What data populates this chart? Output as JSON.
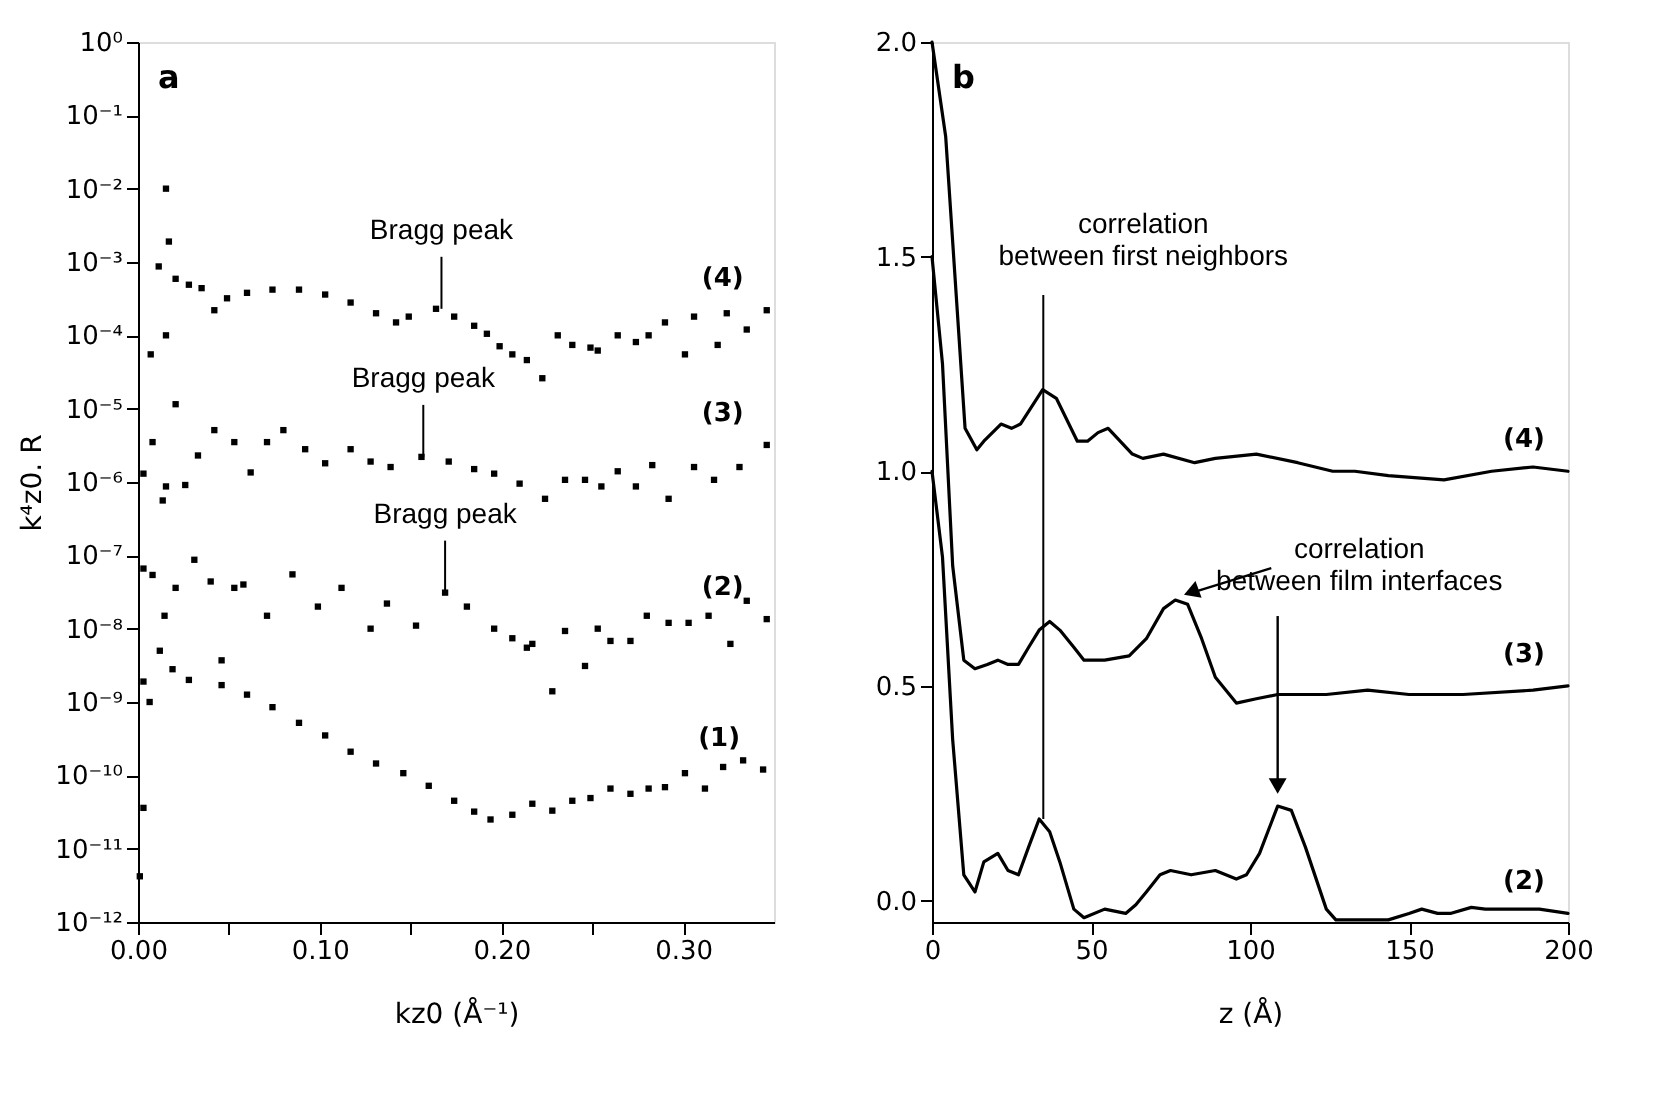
{
  "chart_data": [
    {
      "type": "scatter",
      "marker": "square",
      "log": "y",
      "grid": false,
      "xlabel": "kz0 (Å⁻¹)",
      "ylabel": "k⁴z0. R",
      "xlim": [
        0,
        0.35
      ],
      "xticks": [
        {
          "value": 0,
          "label": "0.00"
        },
        {
          "value": 0.05,
          "label": null
        },
        {
          "value": 0.1,
          "label": "0.10"
        },
        {
          "value": 0.15,
          "label": null
        },
        {
          "value": 0.2,
          "label": "0.20"
        },
        {
          "value": 0.25,
          "label": null
        },
        {
          "value": 0.3,
          "label": "0.30"
        }
      ],
      "ylim": [
        1e-12,
        1
      ],
      "yticks": [
        {
          "value": 1,
          "label": "10⁰"
        },
        {
          "value": 0.1,
          "label": "10⁻¹"
        },
        {
          "value": 0.01,
          "label": "10⁻²"
        },
        {
          "value": 0.001,
          "label": "10⁻³"
        },
        {
          "value": 0.0001,
          "label": "10⁻⁴"
        },
        {
          "value": 1e-05,
          "label": "10⁻⁵"
        },
        {
          "value": 1e-06,
          "label": "10⁻⁶"
        },
        {
          "value": 1e-07,
          "label": "10⁻⁷"
        },
        {
          "value": 1e-08,
          "label": "10⁻⁸"
        },
        {
          "value": 1e-09,
          "label": "10⁻⁹"
        },
        {
          "value": 1e-10,
          "label": "10⁻¹⁰"
        },
        {
          "value": 1e-11,
          "label": "10⁻¹¹"
        },
        {
          "value": 1e-12,
          "label": "10⁻¹²"
        }
      ],
      "annotations": [
        "a",
        {
          "text": "Bragg peak",
          "x": 0.167,
          "y": 0.00023
        },
        {
          "text": "Bragg peak",
          "x": 0.157,
          "y": 2.2e-06
        },
        {
          "text": "Bragg peak",
          "x": 0.169,
          "y": 3.1e-08
        }
      ],
      "series": [
        {
          "name": "(4)",
          "color": "#000000",
          "x": [
            0.003,
            0.007,
            0.0114,
            0.0154,
            0.017,
            0.0207,
            0.028,
            0.035,
            0.042,
            0.049,
            0.06,
            0.074,
            0.0886,
            0.103,
            0.117,
            0.131,
            0.142,
            0.149,
            0.164,
            0.174,
            0.185,
            0.192,
            0.199,
            0.206,
            0.214,
            0.2225,
            0.231,
            0.239,
            0.249,
            0.253,
            0.264,
            0.274,
            0.281,
            0.29,
            0.301,
            0.306,
            0.319,
            0.324,
            0.335,
            0.346
          ],
          "values": [
            1.3e-06,
            5.5e-05,
            0.00087,
            0.01,
            0.0019,
            0.00059,
            0.00049,
            0.00044,
            0.00022,
            0.00032,
            0.00038,
            0.00042,
            0.00042,
            0.00036,
            0.00028,
            0.0002,
            0.00015,
            0.00018,
            0.00023,
            0.00018,
            0.000135,
            0.000105,
            7.1e-05,
            5.5e-05,
            4.6e-05,
            2.6e-05,
            0.0001,
            7.4e-05,
            6.8e-05,
            6.2e-05,
            0.0001,
            8.1e-05,
            0.0001,
            0.00015,
            5.5e-05,
            0.00018,
            7.4e-05,
            0.0002,
            0.00012,
            0.00022
          ]
        },
        {
          "name": "(3)",
          "color": "#000000",
          "x": [
            0.003,
            0.008,
            0.0154,
            0.0207,
            0.026,
            0.033,
            0.042,
            0.053,
            0.062,
            0.071,
            0.08,
            0.092,
            0.103,
            0.117,
            0.128,
            0.139,
            0.156,
            0.171,
            0.185,
            0.196,
            0.21,
            0.224,
            0.235,
            0.246,
            0.255,
            0.264,
            0.274,
            0.283,
            0.292,
            0.306,
            0.317,
            0.331,
            0.346
          ],
          "values": [
            6.6e-08,
            3.5e-06,
            0.0001,
            1.15e-05,
            9.1e-07,
            2.3e-06,
            5.1e-06,
            3.5e-06,
            1.35e-06,
            3.5e-06,
            5.1e-06,
            2.8e-06,
            1.8e-06,
            2.8e-06,
            1.9e-06,
            1.6e-06,
            2.2e-06,
            1.9e-06,
            1.5e-06,
            1.3e-06,
            9.5e-07,
            5.9e-07,
            1.07e-06,
            1.07e-06,
            8.7e-07,
            1.4e-06,
            8.7e-07,
            1.7e-06,
            5.9e-07,
            1.6e-06,
            1.07e-06,
            1.6e-06,
            3.2e-06
          ]
        },
        {
          "name": "(2)",
          "color": "#000000",
          "x": [
            0.003,
            0.008,
            0.0136,
            0.0154,
            0.0207,
            0.031,
            0.04,
            0.046,
            0.053,
            0.058,
            0.071,
            0.085,
            0.099,
            0.112,
            0.128,
            0.137,
            0.153,
            0.169,
            0.181,
            0.196,
            0.206,
            0.214,
            0.217,
            0.228,
            0.235,
            0.246,
            0.253,
            0.26,
            0.271,
            0.28,
            0.292,
            0.303,
            0.314,
            0.326,
            0.335,
            0.346
          ],
          "values": [
            1.9e-09,
            5.4e-08,
            5.6e-07,
            8.7e-07,
            3.6e-08,
            8.7e-08,
            4.4e-08,
            3.7e-09,
            3.6e-08,
            4e-08,
            1.5e-08,
            5.5e-08,
            2e-08,
            3.6e-08,
            1e-08,
            2.2e-08,
            1.1e-08,
            3.1e-08,
            2e-08,
            1e-08,
            7.4e-09,
            5.5e-09,
            6.2e-09,
            1.4e-09,
            9.3e-09,
            3.1e-09,
            1e-08,
            6.8e-09,
            6.8e-09,
            1.5e-08,
            1.2e-08,
            1.2e-08,
            1.5e-08,
            6.2e-09,
            2.4e-08,
            1.35e-08
          ]
        },
        {
          "name": "(1)",
          "color": "#000000",
          "x": [
            0.001,
            0.003,
            0.0064,
            0.012,
            0.0146,
            0.019,
            0.028,
            0.046,
            0.06,
            0.074,
            0.0886,
            0.103,
            0.117,
            0.131,
            0.146,
            0.16,
            0.174,
            0.185,
            0.194,
            0.206,
            0.217,
            0.228,
            0.239,
            0.249,
            0.26,
            0.271,
            0.281,
            0.29,
            0.301,
            0.312,
            0.322,
            0.333,
            0.344
          ],
          "values": [
            4.2e-12,
            3.6e-11,
            1e-09,
            5e-09,
            1.5e-08,
            2.8e-09,
            2e-09,
            1.7e-09,
            1.26e-09,
            8.5e-10,
            5.2e-10,
            3.5e-10,
            2.1e-10,
            1.45e-10,
            1.07e-10,
            7.2e-11,
            4.5e-11,
            3.2e-11,
            2.5e-11,
            2.9e-11,
            4.1e-11,
            3.3e-11,
            4.5e-11,
            4.9e-11,
            6.6e-11,
            5.6e-11,
            6.6e-11,
            6.9e-11,
            1.07e-10,
            6.6e-11,
            1.3e-10,
            1.6e-10,
            1.2e-10
          ]
        }
      ]
    },
    {
      "type": "line",
      "grid": false,
      "line_style": "solid",
      "xlabel": "z (Å)",
      "xlim": [
        0,
        200
      ],
      "xticks": [
        0,
        50,
        100,
        150,
        200
      ],
      "ylim": [
        -0.05,
        2.0
      ],
      "yticks": [
        {
          "value": 0,
          "label": "0.0"
        },
        {
          "value": 0.5,
          "label": "0.5"
        },
        {
          "value": 1,
          "label": "1.0"
        },
        {
          "value": 1.5,
          "label": "1.5"
        },
        {
          "value": 2,
          "label": "2.0"
        }
      ],
      "annotations": [
        "b",
        {
          "text": "correlation\nbetween first neighbors",
          "x": 35,
          "y": 0.19
        },
        {
          "text": "correlation\nbetween film interfaces",
          "x": 76.5,
          "y": 0.7
        }
      ],
      "series": [
        {
          "name": "(4)",
          "color": "#000000",
          "x": [
            0,
            4.3,
            10.4,
            14.1,
            16.3,
            21.7,
            25,
            27.8,
            34.8,
            39.1,
            45.7,
            48.9,
            52.2,
            55.4,
            63,
            66.3,
            72.8,
            82.6,
            89.1,
            102,
            115,
            126,
            133,
            143.5,
            161,
            176,
            189,
            200
          ],
          "values": [
            2.0,
            1.78,
            1.1,
            1.05,
            1.07,
            1.11,
            1.1,
            1.11,
            1.19,
            1.17,
            1.07,
            1.07,
            1.09,
            1.1,
            1.04,
            1.03,
            1.04,
            1.02,
            1.03,
            1.04,
            1.02,
            1.0,
            1.0,
            0.99,
            0.98,
            1.0,
            1.01,
            1.0
          ]
        },
        {
          "name": "(3)",
          "color": "#000000",
          "x": [
            0,
            3.3,
            6.5,
            10,
            13.5,
            17.4,
            20.7,
            23.9,
            27.2,
            30.4,
            33.7,
            37,
            40.2,
            44.6,
            47.8,
            54.3,
            62,
            67.4,
            72.8,
            76.5,
            80.4,
            84.8,
            89.1,
            95.7,
            102,
            108.7,
            124,
            137,
            150,
            167,
            189,
            200
          ],
          "values": [
            1.5,
            1.25,
            0.78,
            0.56,
            0.54,
            0.55,
            0.56,
            0.55,
            0.55,
            0.59,
            0.63,
            0.65,
            0.63,
            0.59,
            0.56,
            0.56,
            0.57,
            0.61,
            0.68,
            0.7,
            0.69,
            0.61,
            0.52,
            0.46,
            0.47,
            0.48,
            0.48,
            0.49,
            0.48,
            0.48,
            0.49,
            0.5
          ]
        },
        {
          "name": "(2)",
          "color": "#000000",
          "x": [
            0,
            3.3,
            6.5,
            10,
            13.5,
            16.3,
            20.7,
            23.9,
            27.2,
            30.4,
            33.7,
            37,
            40.2,
            44.6,
            47.8,
            54.3,
            60.9,
            64.1,
            67.4,
            71.7,
            75,
            81.5,
            89.1,
            95.7,
            98.9,
            103,
            108.7,
            113,
            117.4,
            124,
            127,
            132.6,
            143.5,
            150,
            154,
            159,
            163,
            169.6,
            174,
            187,
            191,
            200
          ],
          "values": [
            1.0,
            0.8,
            0.375,
            0.06,
            0.02,
            0.09,
            0.11,
            0.07,
            0.06,
            0.125,
            0.19,
            0.16,
            0.09,
            -0.02,
            -0.04,
            -0.02,
            -0.03,
            -0.01,
            0.02,
            0.06,
            0.07,
            0.06,
            0.07,
            0.05,
            0.06,
            0.11,
            0.22,
            0.21,
            0.125,
            -0.02,
            -0.045,
            -0.045,
            -0.045,
            -0.03,
            -0.02,
            -0.03,
            -0.03,
            -0.016,
            -0.02,
            -0.02,
            -0.02,
            -0.03
          ]
        }
      ]
    }
  ]
}
